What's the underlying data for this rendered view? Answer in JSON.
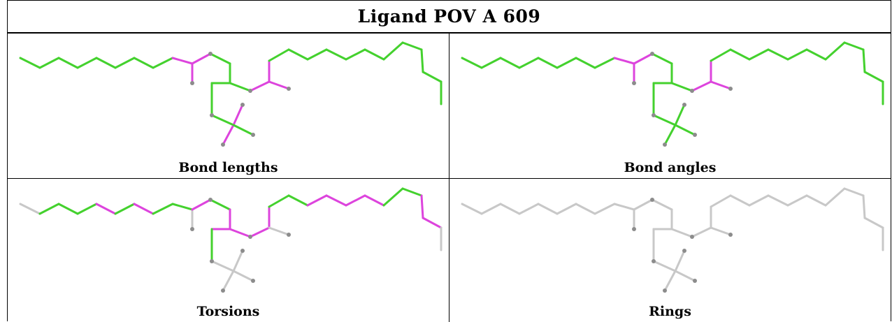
{
  "title": "Ligand POV A 609",
  "panels": [
    {
      "caption": "Bond lengths",
      "mode": "lengths"
    },
    {
      "caption": "Bond angles",
      "mode": "angles"
    },
    {
      "caption": "Torsions",
      "mode": "torsions"
    },
    {
      "caption": "Rings",
      "mode": "rings"
    }
  ],
  "colors": {
    "ok": "#44d12e",
    "outlier": "#dd44dd",
    "neutral": "#c8c8c8",
    "atom": "#8c8c8c"
  }
}
